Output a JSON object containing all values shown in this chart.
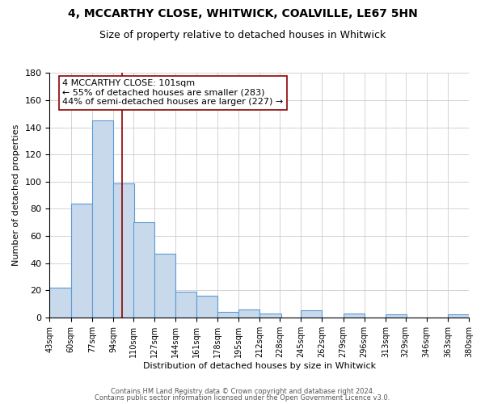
{
  "title": "4, MCCARTHY CLOSE, WHITWICK, COALVILLE, LE67 5HN",
  "subtitle": "Size of property relative to detached houses in Whitwick",
  "xlabel": "Distribution of detached houses by size in Whitwick",
  "ylabel": "Number of detached properties",
  "bar_left_edges": [
    43,
    60,
    77,
    94,
    110,
    127,
    144,
    161,
    178,
    195,
    212,
    228,
    245,
    262,
    279,
    296,
    313,
    329,
    346,
    363
  ],
  "bar_heights": [
    22,
    84,
    145,
    99,
    70,
    47,
    19,
    16,
    4,
    6,
    3,
    0,
    5,
    0,
    3,
    0,
    2,
    0,
    0,
    2
  ],
  "bin_width": 17,
  "bar_facecolor": "#c9d9ec",
  "bar_edgecolor": "#5b9bd5",
  "tick_labels": [
    "43sqm",
    "60sqm",
    "77sqm",
    "94sqm",
    "110sqm",
    "127sqm",
    "144sqm",
    "161sqm",
    "178sqm",
    "195sqm",
    "212sqm",
    "228sqm",
    "245sqm",
    "262sqm",
    "279sqm",
    "296sqm",
    "313sqm",
    "329sqm",
    "346sqm",
    "363sqm",
    "380sqm"
  ],
  "ylim": [
    0,
    180
  ],
  "yticks": [
    0,
    20,
    40,
    60,
    80,
    100,
    120,
    140,
    160,
    180
  ],
  "redline_x": 101,
  "annotation_title": "4 MCCARTHY CLOSE: 101sqm",
  "annotation_line1": "← 55% of detached houses are smaller (283)",
  "annotation_line2": "44% of semi-detached houses are larger (227) →",
  "footer_line1": "Contains HM Land Registry data © Crown copyright and database right 2024.",
  "footer_line2": "Contains public sector information licensed under the Open Government Licence v3.0.",
  "background_color": "#ffffff",
  "grid_color": "#cccccc",
  "title_fontsize": 10,
  "subtitle_fontsize": 9,
  "ylabel_fontsize": 8,
  "xlabel_fontsize": 8,
  "tick_fontsize": 7,
  "annotation_fontsize": 8,
  "footer_fontsize": 6
}
